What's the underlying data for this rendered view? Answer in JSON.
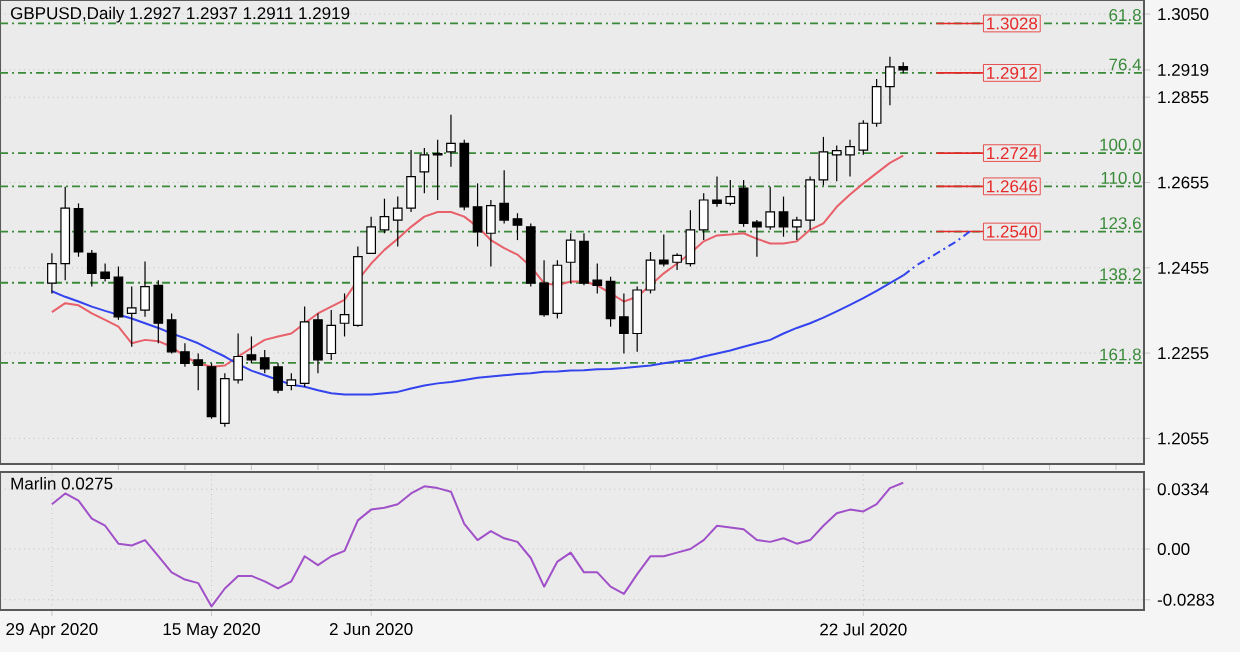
{
  "chart_data": [
    {
      "type": "candlestick",
      "title": "GBPUSD,Daily 1.2927 1.2937 1.2911 1.2919",
      "categories": [
        null,
        null,
        null,
        null,
        null,
        null,
        null,
        null,
        null,
        null,
        null,
        null,
        null,
        null,
        null,
        null,
        null,
        null,
        null,
        null,
        null,
        null,
        null,
        null,
        null,
        null,
        null,
        null,
        null,
        null,
        null,
        null,
        null,
        null,
        null,
        null,
        null,
        null,
        null,
        null,
        null,
        null,
        null,
        null,
        null,
        null,
        null,
        null,
        null,
        null,
        null,
        null,
        null,
        null,
        null,
        null,
        null,
        null,
        null,
        null,
        null,
        null,
        null,
        null,
        null,
        null,
        null,
        null,
        null,
        null,
        null,
        null,
        null,
        null,
        null,
        null,
        null,
        null,
        null,
        null,
        null,
        null,
        null
      ],
      "ohlc": [
        [
          1.2419,
          1.2489,
          1.2395,
          1.2465
        ],
        [
          1.2465,
          1.2645,
          1.2426,
          1.2595
        ],
        [
          1.2594,
          1.2606,
          1.2481,
          1.2492
        ],
        [
          1.2489,
          1.2497,
          1.2411,
          1.2442
        ],
        [
          1.2445,
          1.2465,
          1.2423,
          1.243
        ],
        [
          1.2433,
          1.2458,
          1.2333,
          1.234
        ],
        [
          1.2348,
          1.2411,
          1.227,
          1.2361
        ],
        [
          1.2356,
          1.247,
          1.234,
          1.2411
        ],
        [
          1.2414,
          1.2426,
          1.2278,
          1.2325
        ],
        [
          1.2333,
          1.2348,
          1.2254,
          1.2258
        ],
        [
          1.2258,
          1.2278,
          1.2223,
          1.2231
        ],
        [
          1.2239,
          1.2254,
          1.2168,
          1.2226
        ],
        [
          1.2223,
          1.2231,
          1.2101,
          1.2106
        ],
        [
          1.209,
          1.2208,
          1.2082,
          1.2195
        ],
        [
          1.2192,
          1.2301,
          1.2184,
          1.2247
        ],
        [
          1.2251,
          1.2294,
          1.2231,
          1.2239
        ],
        [
          1.2244,
          1.2262,
          1.2208,
          1.2218
        ],
        [
          1.2223,
          1.2231,
          1.2161,
          1.2168
        ],
        [
          1.2179,
          1.2208,
          1.2168,
          1.2192
        ],
        [
          1.2184,
          1.2364,
          1.2176,
          1.2328
        ],
        [
          1.2333,
          1.2348,
          1.2208,
          1.2239
        ],
        [
          1.2254,
          1.2356,
          1.2239,
          1.232
        ],
        [
          1.2325,
          1.2395,
          1.2294,
          1.2345
        ],
        [
          1.232,
          1.2505,
          1.2317,
          1.2481
        ],
        [
          1.2489,
          1.2575,
          1.2489,
          1.2551
        ],
        [
          1.2544,
          1.2617,
          1.2536,
          1.2575
        ],
        [
          1.2567,
          1.2622,
          1.2505,
          1.2595
        ],
        [
          1.2595,
          1.2731,
          1.2586,
          1.2669
        ],
        [
          1.268,
          1.2736,
          1.263,
          1.272
        ],
        [
          1.2723,
          1.2755,
          1.2614,
          1.272
        ],
        [
          1.2727,
          1.2814,
          1.2692,
          1.2747
        ],
        [
          1.2747,
          1.2755,
          1.259,
          1.2598
        ],
        [
          1.2598,
          1.2653,
          1.2505,
          1.2539
        ],
        [
          1.2536,
          1.2614,
          1.2458,
          1.2601
        ],
        [
          1.2606,
          1.2684,
          1.2559,
          1.2567
        ],
        [
          1.257,
          1.2583,
          1.252,
          1.2555
        ],
        [
          1.2551,
          1.2559,
          1.2411,
          1.2419
        ],
        [
          1.2419,
          1.2473,
          1.234,
          1.2345
        ],
        [
          1.2348,
          1.2473,
          1.2336,
          1.2461
        ],
        [
          1.2468,
          1.2536,
          1.2419,
          1.252
        ],
        [
          1.2517,
          1.2536,
          1.2414,
          1.2419
        ],
        [
          1.2426,
          1.2465,
          1.2395,
          1.2414
        ],
        [
          1.2423,
          1.2434,
          1.2317,
          1.2336
        ],
        [
          1.234,
          1.2395,
          1.2254,
          1.2301
        ],
        [
          1.2301,
          1.2411,
          1.2258,
          1.2403
        ],
        [
          1.2403,
          1.2492,
          1.2395,
          1.2473
        ],
        [
          1.2473,
          1.2533,
          1.2458,
          1.2464
        ],
        [
          1.2468,
          1.2489,
          1.245,
          1.2484
        ],
        [
          1.2465,
          1.259,
          1.2458,
          1.2544
        ],
        [
          1.2544,
          1.263,
          1.252,
          1.2614
        ],
        [
          1.2614,
          1.2669,
          1.2598,
          1.2606
        ],
        [
          1.2606,
          1.2661,
          1.2601,
          1.2622
        ],
        [
          1.2642,
          1.2661,
          1.2551,
          1.2559
        ],
        [
          1.2562,
          1.2567,
          1.2481,
          1.2551
        ],
        [
          1.2551,
          1.2645,
          1.2544,
          1.2586
        ],
        [
          1.2586,
          1.2622,
          1.2528,
          1.2551
        ],
        [
          1.2551,
          1.2575,
          1.252,
          1.2567
        ],
        [
          1.2567,
          1.2669,
          1.2544,
          1.2661
        ],
        [
          1.2661,
          1.2762,
          1.2648,
          1.2727
        ],
        [
          1.272,
          1.2742,
          1.2658,
          1.273
        ],
        [
          1.272,
          1.2755,
          1.2669,
          1.2739
        ],
        [
          1.2731,
          1.2801,
          1.272,
          1.2794
        ],
        [
          1.2794,
          1.2898,
          1.2786,
          1.288
        ],
        [
          1.288,
          1.295,
          1.2836,
          1.2926
        ],
        [
          1.2927,
          1.2937,
          1.2911,
          1.2919
        ],
        null,
        null,
        null,
        null,
        null,
        null,
        null,
        null,
        null,
        null,
        null,
        null,
        null,
        null,
        null,
        null,
        null,
        null
      ],
      "series": [
        {
          "type": "line",
          "color": "#e8606a",
          "values": [
            1.2351,
            1.2372,
            1.2367,
            1.2348,
            1.2333,
            1.2317,
            1.2278,
            1.2286,
            1.2283,
            1.227,
            1.2247,
            1.2231,
            1.2223,
            1.2226,
            1.2247,
            1.2267,
            1.2286,
            1.2294,
            1.2301,
            1.2325,
            1.2348,
            1.2364,
            1.238,
            1.2426,
            1.2465,
            1.2497,
            1.2523,
            1.2551,
            1.2575,
            1.2586,
            1.2586,
            1.2575,
            1.2551,
            1.252,
            1.2501,
            1.2486,
            1.2458,
            1.2419,
            1.2414,
            1.2423,
            1.2423,
            1.2414,
            1.2395,
            1.2376,
            1.2387,
            1.2414,
            1.2442,
            1.2465,
            1.2489,
            1.2517,
            1.2531,
            1.2533,
            1.2536,
            1.2523,
            1.2512,
            1.2512,
            1.2517,
            1.2544,
            1.2559,
            1.2598,
            1.2627,
            1.2653,
            1.2677,
            1.2701,
            1.2718,
            null,
            null,
            null,
            null,
            null,
            null,
            null,
            null,
            null,
            null,
            null,
            null,
            null,
            null,
            null,
            null,
            null,
            null
          ]
        },
        {
          "type": "line",
          "color": "#3344ee",
          "values": [
            1.24,
            1.2387,
            1.2376,
            1.2364,
            1.2354,
            1.2345,
            1.2336,
            1.2325,
            1.2314,
            1.2301,
            1.229,
            1.2278,
            1.2262,
            1.2247,
            1.2229,
            1.2214,
            1.2203,
            1.2192,
            1.2181,
            1.2176,
            1.2168,
            1.2161,
            1.2158,
            1.2158,
            1.2158,
            1.2161,
            1.2164,
            1.2172,
            1.2179,
            1.2184,
            1.2187,
            1.2192,
            1.2197,
            1.22,
            1.2203,
            1.2206,
            1.2208,
            1.2211,
            1.2212,
            1.2214,
            1.2215,
            1.2217,
            1.2218,
            1.222,
            1.2223,
            1.2226,
            1.2231,
            1.2236,
            1.2239,
            1.2247,
            1.2254,
            1.2261,
            1.227,
            1.2278,
            1.2286,
            1.2301,
            1.2314,
            1.2325,
            1.2338,
            1.2353,
            1.2368,
            1.2384,
            1.2401,
            1.2419,
            1.2437,
            null,
            null,
            null,
            null,
            null,
            null,
            null,
            null,
            null,
            null,
            null,
            null,
            null,
            null,
            null,
            null,
            null,
            null
          ]
        },
        {
          "type": "line",
          "color": "#3344ee",
          "line_style": "dashed",
          "values": [
            null,
            null,
            null,
            null,
            null,
            null,
            null,
            null,
            null,
            null,
            null,
            null,
            null,
            null,
            null,
            null,
            null,
            null,
            null,
            null,
            null,
            null,
            null,
            null,
            null,
            null,
            null,
            null,
            null,
            null,
            null,
            null,
            null,
            null,
            null,
            null,
            null,
            null,
            null,
            null,
            null,
            null,
            null,
            null,
            null,
            null,
            null,
            null,
            null,
            null,
            null,
            null,
            null,
            null,
            null,
            null,
            null,
            null,
            null,
            null,
            null,
            null,
            null,
            null,
            1.2437,
            1.2461,
            1.2479,
            1.2498,
            1.2517,
            1.254,
            null,
            null,
            null,
            null,
            null,
            null,
            null,
            null,
            null,
            null,
            null,
            null,
            null
          ]
        }
      ],
      "ylim": [
        1.1995,
        1.3083
      ],
      "yticks": [
        {
          "value": 1.305,
          "label": "1.3050"
        },
        {
          "value": 1.2919,
          "label": "1.2919"
        },
        1.2855,
        1.2655,
        1.2455,
        1.2255,
        1.2055
      ],
      "ref_lines": [
        {
          "axis": "y",
          "value": 1.3028,
          "label": "1.3028",
          "color": "#3a8a3a",
          "line_style": "dashed"
        },
        {
          "axis": "y",
          "value": 1.2912,
          "label": "1.2912",
          "color": "#3a8a3a",
          "line_style": "dashed"
        },
        {
          "axis": "y",
          "value": 1.2724,
          "label": "1.2724",
          "color": "#3a8a3a",
          "line_style": "dashed"
        },
        {
          "axis": "y",
          "value": 1.2646,
          "label": "1.2646",
          "color": "#3a8a3a",
          "line_style": "dashed"
        },
        {
          "axis": "y",
          "value": 1.254,
          "label": "1.2540",
          "color": "#3a8a3a",
          "line_style": "dashed"
        },
        {
          "axis": "y",
          "value": 1.242,
          "color": "#3a8a3a",
          "line_style": "dashed"
        },
        {
          "axis": "y",
          "value": 1.2232,
          "color": "#3a8a3a",
          "line_style": "dashed"
        }
      ],
      "annotations": [
        {
          "text": "61.8",
          "y": 1.3028
        },
        {
          "text": "76.4",
          "y": 1.2912
        },
        {
          "text": "100.0",
          "y": 1.2724
        },
        {
          "text": "110.0",
          "y": 1.2646
        },
        {
          "text": "123.6",
          "y": 1.254
        },
        {
          "text": "138.2",
          "y": 1.242
        },
        {
          "text": "161.8",
          "y": 1.2232
        }
      ],
      "grid": "y",
      "tick_labels": "y"
    },
    {
      "type": "line",
      "title": "Marlin 0.0275",
      "categories": [
        "29 Apr 2020",
        null,
        null,
        null,
        null,
        null,
        null,
        null,
        null,
        null,
        null,
        null,
        "15 May 2020",
        null,
        null,
        null,
        null,
        null,
        null,
        null,
        null,
        null,
        null,
        null,
        "2 Jun 2020",
        null,
        null,
        null,
        null,
        null,
        null,
        null,
        null,
        null,
        null,
        null,
        null,
        null,
        null,
        null,
        null,
        null,
        null,
        null,
        null,
        null,
        null,
        null,
        null,
        null,
        null,
        null,
        null,
        null,
        null,
        null,
        null,
        null,
        null,
        null,
        null,
        "22 Jul 2020",
        null,
        null,
        null,
        null,
        null,
        null,
        null,
        null,
        null,
        null,
        null,
        null,
        null,
        null,
        null,
        null,
        null,
        null,
        null,
        null,
        null
      ],
      "series": [
        {
          "color": "#a050c8",
          "values": [
            0.025,
            0.031,
            0.027,
            0.017,
            0.013,
            0.003,
            0.002,
            0.005,
            -0.004,
            -0.013,
            -0.017,
            -0.019,
            -0.032,
            -0.022,
            -0.015,
            -0.015,
            -0.018,
            -0.022,
            -0.018,
            -0.004,
            -0.009,
            -0.004,
            -0.001,
            0.016,
            0.022,
            0.023,
            0.025,
            0.031,
            0.035,
            0.034,
            0.032,
            0.014,
            0.005,
            0.01,
            0.006,
            0.004,
            -0.005,
            -0.021,
            -0.007,
            -0.002,
            -0.013,
            -0.013,
            -0.021,
            -0.025,
            -0.014,
            -0.004,
            -0.004,
            -0.002,
            0.0,
            0.005,
            0.013,
            0.012,
            0.011,
            0.005,
            0.004,
            0.006,
            0.003,
            0.005,
            0.013,
            0.02,
            0.022,
            0.021,
            0.025,
            0.034,
            0.037,
            null,
            null,
            null,
            null,
            null,
            null,
            null,
            null,
            null,
            null,
            null,
            null,
            null,
            null,
            null,
            null,
            null,
            null
          ]
        }
      ],
      "ylim": [
        -0.034,
        0.043
      ],
      "yticks": [
        0.0334,
        {
          "value": 0,
          "label": "0.00"
        },
        -0.0283
      ],
      "grid": true
    }
  ]
}
